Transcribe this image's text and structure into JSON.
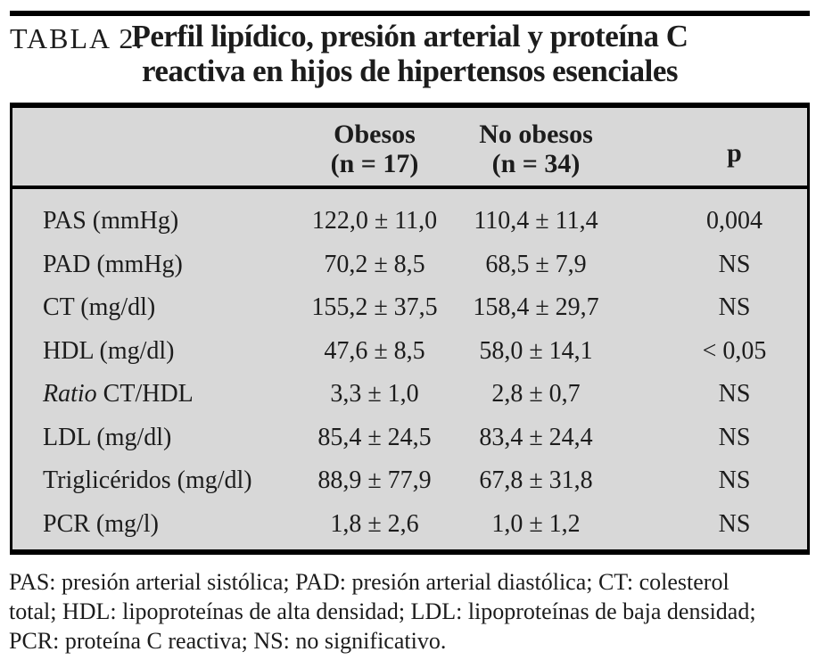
{
  "header": {
    "label": "TABLA 2.",
    "title_lines": [
      "Perfil lipídico, presión arterial y proteína C",
      "reactiva en hijos de hipertensos esenciales"
    ]
  },
  "table": {
    "columns": {
      "obesos_line1": "Obesos",
      "obesos_line2": "(n = 17)",
      "no_obesos_line1": "No obesos",
      "no_obesos_line2": "(n = 34)",
      "p": "p"
    },
    "rows": [
      {
        "label_italic": "",
        "label": "PAS (mmHg)",
        "obesos": "122,0 ± 11,0",
        "no_obesos": "110,4 ± 11,4",
        "p": "0,004"
      },
      {
        "label_italic": "",
        "label": "PAD (mmHg)",
        "obesos": "70,2 ± 8,5",
        "no_obesos": "68,5 ± 7,9",
        "p": "NS"
      },
      {
        "label_italic": "",
        "label": "CT (mg/dl)",
        "obesos": "155,2 ± 37,5",
        "no_obesos": "158,4 ± 29,7",
        "p": "NS"
      },
      {
        "label_italic": "",
        "label": "HDL (mg/dl)",
        "obesos": "47,6 ± 8,5",
        "no_obesos": "58,0 ± 14,1",
        "p": "< 0,05"
      },
      {
        "label_italic": "Ratio",
        "label": " CT/HDL",
        "obesos": "3,3 ± 1,0",
        "no_obesos": "2,8 ± 0,7",
        "p": "NS"
      },
      {
        "label_italic": "",
        "label": "LDL (mg/dl)",
        "obesos": "85,4 ± 24,5",
        "no_obesos": "83,4 ± 24,4",
        "p": "NS"
      },
      {
        "label_italic": "",
        "label": "Triglicéridos (mg/dl)",
        "obesos": "88,9 ± 77,9",
        "no_obesos": "67,8 ± 31,8",
        "p": "NS"
      },
      {
        "label_italic": "",
        "label": "PCR (mg/l)",
        "obesos": "1,8 ± 2,6",
        "no_obesos": "1,0 ± 1,2",
        "p": "NS"
      }
    ]
  },
  "footnote": {
    "lines": [
      "PAS: presión arterial sistólica; PAD: presión arterial diastólica; CT: colesterol",
      "total; HDL: lipoproteínas de alta densidad; LDL: lipoproteínas de baja densidad;",
      "PCR: proteína C reactiva; NS: no significativo."
    ]
  },
  "colors": {
    "table_background": "#d8d8d8",
    "rule": "#000000",
    "text": "#1c1c1c",
    "page_background": "#ffffff"
  }
}
